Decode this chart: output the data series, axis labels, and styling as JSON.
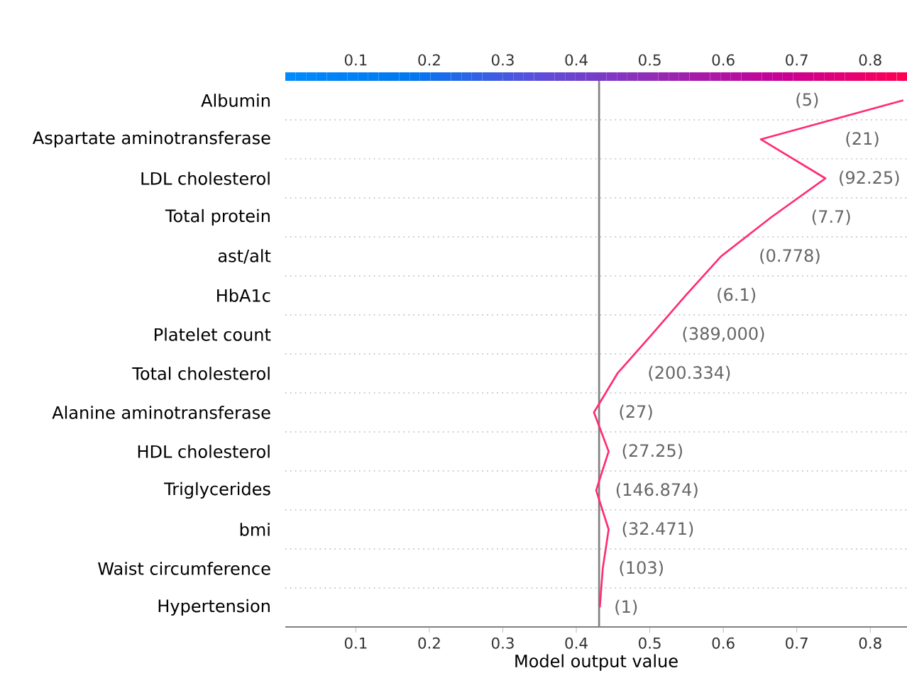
{
  "chart_data": {
    "type": "line",
    "orientation": "horizontal",
    "xlabel": "Model output value",
    "xlim": [
      0.004,
      0.85
    ],
    "xticks": [
      0.1,
      0.2,
      0.3,
      0.4,
      0.5,
      0.6,
      0.7,
      0.8
    ],
    "clim": [
      0.004,
      0.85
    ],
    "cticks": [
      0.1,
      0.2,
      0.3,
      0.4,
      0.5,
      0.6,
      0.7,
      0.8
    ],
    "categories": [
      "Albumin",
      "Aspartate aminotransferase",
      "LDL cholesterol",
      "Total protein",
      "ast/alt",
      "HbA1c",
      "Platelet count",
      "Total cholesterol",
      "Alanine aminotransferase",
      "HDL cholesterol",
      "Triglycerides",
      "bmi",
      "Waist circumference",
      "Hypertension"
    ],
    "grid": "y",
    "series": [
      {
        "color": "#ff2d6f",
        "values": [
          0.845,
          0.651,
          0.739,
          0.665,
          0.597,
          0.549,
          0.503,
          0.456,
          0.424,
          0.444,
          0.427,
          0.444,
          0.436,
          0.432
        ]
      }
    ],
    "ref_lines": [
      {
        "axis": "x",
        "value": 0.431,
        "color": "#808080"
      }
    ],
    "annotations": [
      "(5)",
      "(21)",
      "(92.25)",
      "(7.7)",
      "(0.778)",
      "(6.1)",
      "(389,000)",
      "(200.334)",
      "(27)",
      "(27.25)",
      "(146.874)",
      "(32.471)",
      "(103)",
      "(1)"
    ]
  }
}
